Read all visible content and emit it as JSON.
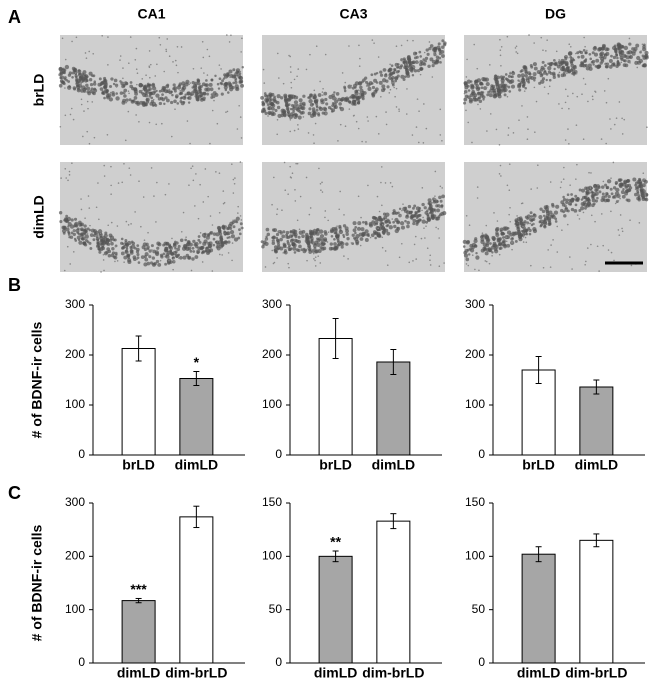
{
  "panels": {
    "a": "A",
    "b": "B",
    "c": "C"
  },
  "columns": [
    "CA1",
    "CA3",
    "DG"
  ],
  "rows": [
    "brLD",
    "dimLD"
  ],
  "chart_data": [
    {
      "type": "bar",
      "ylabel": "# of BDNF-ir cells",
      "categories": [
        "brLD",
        "dimLD"
      ],
      "values": [
        213,
        153
      ],
      "errors": [
        25,
        14
      ],
      "colors": [
        "#ffffff",
        "#a6a6a6"
      ],
      "ylim": [
        0,
        300
      ],
      "yticks": [
        0,
        100,
        200,
        300
      ],
      "annotations": [
        {
          "category": "dimLD",
          "text": "*"
        }
      ]
    },
    {
      "type": "bar",
      "categories": [
        "brLD",
        "dimLD"
      ],
      "values": [
        233,
        186
      ],
      "errors": [
        40,
        25
      ],
      "colors": [
        "#ffffff",
        "#a6a6a6"
      ],
      "ylim": [
        0,
        300
      ],
      "yticks": [
        0,
        100,
        200,
        300
      ]
    },
    {
      "type": "bar",
      "categories": [
        "brLD",
        "dimLD"
      ],
      "values": [
        170,
        136
      ],
      "errors": [
        27,
        14
      ],
      "colors": [
        "#ffffff",
        "#a6a6a6"
      ],
      "ylim": [
        0,
        300
      ],
      "yticks": [
        0,
        100,
        200,
        300
      ]
    },
    {
      "type": "bar",
      "ylabel": "# of BDNF-ir cells",
      "categories": [
        "dimLD",
        "dim-brLD"
      ],
      "values": [
        117,
        274
      ],
      "errors": [
        4,
        20
      ],
      "colors": [
        "#a6a6a6",
        "#ffffff"
      ],
      "ylim": [
        0,
        300
      ],
      "yticks": [
        0,
        100,
        200,
        300
      ],
      "annotations": [
        {
          "category": "dimLD",
          "text": "***"
        }
      ]
    },
    {
      "type": "bar",
      "categories": [
        "dimLD",
        "dim-brLD"
      ],
      "values": [
        100,
        133
      ],
      "errors": [
        5,
        7
      ],
      "colors": [
        "#a6a6a6",
        "#ffffff"
      ],
      "ylim": [
        0,
        150
      ],
      "yticks": [
        0,
        50,
        100,
        150
      ],
      "annotations": [
        {
          "category": "dimLD",
          "text": "**"
        }
      ]
    },
    {
      "type": "bar",
      "categories": [
        "dimLD",
        "dim-brLD"
      ],
      "values": [
        102,
        115
      ],
      "errors": [
        7,
        6
      ],
      "colors": [
        "#a6a6a6",
        "#ffffff"
      ],
      "ylim": [
        0,
        150
      ],
      "yticks": [
        0,
        50,
        100,
        150
      ]
    }
  ]
}
